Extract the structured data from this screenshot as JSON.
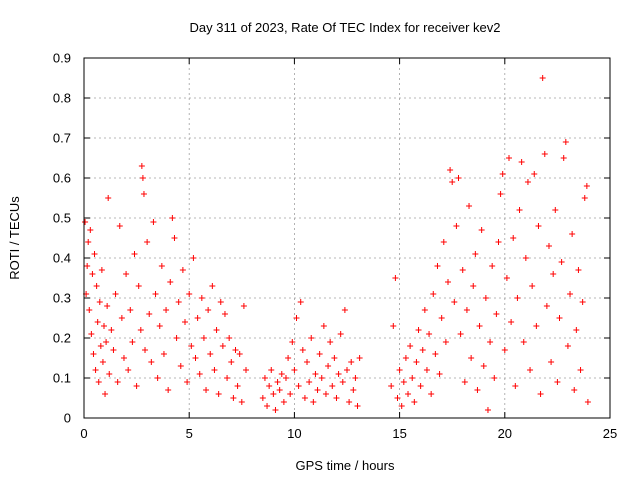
{
  "chart_data": {
    "type": "scatter",
    "title": "Day 311 of 2023, Rate Of TEC Index for receiver kev2",
    "xlabel": "GPS time / hours",
    "ylabel": "ROTI / TECUs",
    "xlim": [
      0,
      25
    ],
    "ylim": [
      0,
      0.9
    ],
    "x_ticks": [
      "0",
      "5",
      "10",
      "15",
      "20",
      "25"
    ],
    "y_ticks": [
      "0",
      "0.1",
      "0.2",
      "0.3",
      "0.4",
      "0.5",
      "0.6",
      "0.7",
      "0.8",
      "0.9"
    ],
    "grid": true,
    "marker": "+",
    "color": "#ff0000",
    "envelope_note": "Dense clusters of ROTI samples; values listed as [x_hours, roti] representative points",
    "points": [
      [
        0.05,
        0.49
      ],
      [
        0.1,
        0.31
      ],
      [
        0.15,
        0.38
      ],
      [
        0.2,
        0.44
      ],
      [
        0.25,
        0.27
      ],
      [
        0.3,
        0.47
      ],
      [
        0.35,
        0.21
      ],
      [
        0.4,
        0.36
      ],
      [
        0.45,
        0.16
      ],
      [
        0.5,
        0.41
      ],
      [
        0.55,
        0.12
      ],
      [
        0.6,
        0.33
      ],
      [
        0.65,
        0.24
      ],
      [
        0.7,
        0.09
      ],
      [
        0.75,
        0.29
      ],
      [
        0.8,
        0.18
      ],
      [
        0.85,
        0.37
      ],
      [
        0.9,
        0.14
      ],
      [
        0.95,
        0.23
      ],
      [
        1.0,
        0.06
      ],
      [
        1.05,
        0.19
      ],
      [
        1.1,
        0.28
      ],
      [
        1.15,
        0.55
      ],
      [
        1.2,
        0.11
      ],
      [
        1.3,
        0.22
      ],
      [
        1.4,
        0.17
      ],
      [
        1.5,
        0.31
      ],
      [
        1.6,
        0.09
      ],
      [
        1.7,
        0.48
      ],
      [
        1.8,
        0.25
      ],
      [
        1.9,
        0.15
      ],
      [
        2.0,
        0.36
      ],
      [
        2.1,
        0.12
      ],
      [
        2.2,
        0.27
      ],
      [
        2.3,
        0.19
      ],
      [
        2.4,
        0.41
      ],
      [
        2.5,
        0.08
      ],
      [
        2.6,
        0.33
      ],
      [
        2.7,
        0.22
      ],
      [
        2.75,
        0.63
      ],
      [
        2.8,
        0.6
      ],
      [
        2.85,
        0.56
      ],
      [
        2.9,
        0.17
      ],
      [
        3.0,
        0.44
      ],
      [
        3.1,
        0.26
      ],
      [
        3.2,
        0.14
      ],
      [
        3.3,
        0.49
      ],
      [
        3.4,
        0.31
      ],
      [
        3.5,
        0.1
      ],
      [
        3.6,
        0.23
      ],
      [
        3.7,
        0.38
      ],
      [
        3.8,
        0.16
      ],
      [
        3.9,
        0.27
      ],
      [
        4.0,
        0.07
      ],
      [
        4.1,
        0.34
      ],
      [
        4.2,
        0.5
      ],
      [
        4.3,
        0.45
      ],
      [
        4.4,
        0.2
      ],
      [
        4.5,
        0.29
      ],
      [
        4.6,
        0.13
      ],
      [
        4.7,
        0.37
      ],
      [
        4.8,
        0.24
      ],
      [
        4.9,
        0.09
      ],
      [
        5.0,
        0.31
      ],
      [
        5.1,
        0.18
      ],
      [
        5.2,
        0.4
      ],
      [
        5.3,
        0.15
      ],
      [
        5.4,
        0.25
      ],
      [
        5.5,
        0.11
      ],
      [
        5.6,
        0.3
      ],
      [
        5.7,
        0.2
      ],
      [
        5.8,
        0.07
      ],
      [
        5.9,
        0.27
      ],
      [
        6.0,
        0.16
      ],
      [
        6.1,
        0.33
      ],
      [
        6.2,
        0.12
      ],
      [
        6.3,
        0.22
      ],
      [
        6.4,
        0.06
      ],
      [
        6.5,
        0.29
      ],
      [
        6.6,
        0.18
      ],
      [
        6.7,
        0.26
      ],
      [
        6.8,
        0.1
      ],
      [
        6.9,
        0.2
      ],
      [
        7.0,
        0.14
      ],
      [
        7.1,
        0.05
      ],
      [
        7.2,
        0.17
      ],
      [
        7.3,
        0.08
      ],
      [
        7.4,
        0.16
      ],
      [
        7.5,
        0.04
      ],
      [
        7.6,
        0.28
      ],
      [
        7.7,
        0.12
      ],
      [
        8.5,
        0.05
      ],
      [
        8.6,
        0.1
      ],
      [
        8.7,
        0.03
      ],
      [
        8.8,
        0.08
      ],
      [
        8.9,
        0.12
      ],
      [
        9.0,
        0.06
      ],
      [
        9.1,
        0.02
      ],
      [
        9.2,
        0.09
      ],
      [
        9.3,
        0.07
      ],
      [
        9.4,
        0.11
      ],
      [
        9.5,
        0.04
      ],
      [
        9.6,
        0.1
      ],
      [
        9.7,
        0.15
      ],
      [
        9.8,
        0.06
      ],
      [
        9.9,
        0.19
      ],
      [
        10.0,
        0.12
      ],
      [
        10.1,
        0.25
      ],
      [
        10.2,
        0.08
      ],
      [
        10.3,
        0.29
      ],
      [
        10.4,
        0.17
      ],
      [
        10.5,
        0.05
      ],
      [
        10.6,
        0.14
      ],
      [
        10.7,
        0.09
      ],
      [
        10.8,
        0.2
      ],
      [
        10.9,
        0.04
      ],
      [
        11.0,
        0.11
      ],
      [
        11.1,
        0.07
      ],
      [
        11.2,
        0.16
      ],
      [
        11.3,
        0.1
      ],
      [
        11.4,
        0.23
      ],
      [
        11.5,
        0.06
      ],
      [
        11.6,
        0.13
      ],
      [
        11.7,
        0.19
      ],
      [
        11.8,
        0.08
      ],
      [
        11.9,
        0.15
      ],
      [
        12.0,
        0.05
      ],
      [
        12.1,
        0.11
      ],
      [
        12.2,
        0.21
      ],
      [
        12.3,
        0.09
      ],
      [
        12.4,
        0.27
      ],
      [
        12.5,
        0.12
      ],
      [
        12.6,
        0.04
      ],
      [
        12.7,
        0.14
      ],
      [
        12.8,
        0.07
      ],
      [
        12.9,
        0.1
      ],
      [
        13.0,
        0.03
      ],
      [
        13.1,
        0.15
      ],
      [
        14.6,
        0.08
      ],
      [
        14.7,
        0.23
      ],
      [
        14.8,
        0.35
      ],
      [
        14.9,
        0.05
      ],
      [
        15.0,
        0.12
      ],
      [
        15.1,
        0.03
      ],
      [
        15.2,
        0.09
      ],
      [
        15.3,
        0.15
      ],
      [
        15.4,
        0.06
      ],
      [
        15.5,
        0.18
      ],
      [
        15.6,
        0.1
      ],
      [
        15.7,
        0.04
      ],
      [
        15.8,
        0.14
      ],
      [
        15.9,
        0.22
      ],
      [
        16.0,
        0.08
      ],
      [
        16.1,
        0.17
      ],
      [
        16.2,
        0.27
      ],
      [
        16.3,
        0.12
      ],
      [
        16.4,
        0.21
      ],
      [
        16.5,
        0.06
      ],
      [
        16.6,
        0.31
      ],
      [
        16.7,
        0.16
      ],
      [
        16.8,
        0.38
      ],
      [
        16.9,
        0.11
      ],
      [
        17.0,
        0.25
      ],
      [
        17.1,
        0.44
      ],
      [
        17.2,
        0.19
      ],
      [
        17.3,
        0.34
      ],
      [
        17.4,
        0.62
      ],
      [
        17.5,
        0.59
      ],
      [
        17.6,
        0.29
      ],
      [
        17.7,
        0.48
      ],
      [
        17.8,
        0.6
      ],
      [
        17.9,
        0.21
      ],
      [
        18.0,
        0.37
      ],
      [
        18.1,
        0.09
      ],
      [
        18.2,
        0.27
      ],
      [
        18.3,
        0.53
      ],
      [
        18.4,
        0.15
      ],
      [
        18.5,
        0.33
      ],
      [
        18.6,
        0.41
      ],
      [
        18.7,
        0.07
      ],
      [
        18.8,
        0.23
      ],
      [
        18.9,
        0.47
      ],
      [
        19.0,
        0.13
      ],
      [
        19.1,
        0.3
      ],
      [
        19.2,
        0.02
      ],
      [
        19.3,
        0.19
      ],
      [
        19.4,
        0.38
      ],
      [
        19.5,
        0.1
      ],
      [
        19.6,
        0.26
      ],
      [
        19.7,
        0.44
      ],
      [
        19.8,
        0.56
      ],
      [
        19.9,
        0.61
      ],
      [
        20.0,
        0.17
      ],
      [
        20.1,
        0.35
      ],
      [
        20.2,
        0.65
      ],
      [
        20.3,
        0.24
      ],
      [
        20.4,
        0.45
      ],
      [
        20.5,
        0.08
      ],
      [
        20.6,
        0.3
      ],
      [
        20.7,
        0.52
      ],
      [
        20.8,
        0.64
      ],
      [
        20.9,
        0.19
      ],
      [
        21.0,
        0.4
      ],
      [
        21.1,
        0.59
      ],
      [
        21.2,
        0.12
      ],
      [
        21.3,
        0.33
      ],
      [
        21.4,
        0.61
      ],
      [
        21.5,
        0.23
      ],
      [
        21.6,
        0.48
      ],
      [
        21.7,
        0.06
      ],
      [
        21.8,
        0.85
      ],
      [
        21.9,
        0.66
      ],
      [
        22.0,
        0.28
      ],
      [
        22.1,
        0.43
      ],
      [
        22.2,
        0.14
      ],
      [
        22.3,
        0.36
      ],
      [
        22.4,
        0.52
      ],
      [
        22.5,
        0.09
      ],
      [
        22.6,
        0.25
      ],
      [
        22.7,
        0.39
      ],
      [
        22.8,
        0.65
      ],
      [
        22.9,
        0.69
      ],
      [
        23.0,
        0.18
      ],
      [
        23.1,
        0.31
      ],
      [
        23.2,
        0.46
      ],
      [
        23.3,
        0.07
      ],
      [
        23.4,
        0.22
      ],
      [
        23.5,
        0.37
      ],
      [
        23.6,
        0.12
      ],
      [
        23.7,
        0.29
      ],
      [
        23.8,
        0.55
      ],
      [
        23.9,
        0.58
      ],
      [
        23.95,
        0.04
      ]
    ]
  }
}
